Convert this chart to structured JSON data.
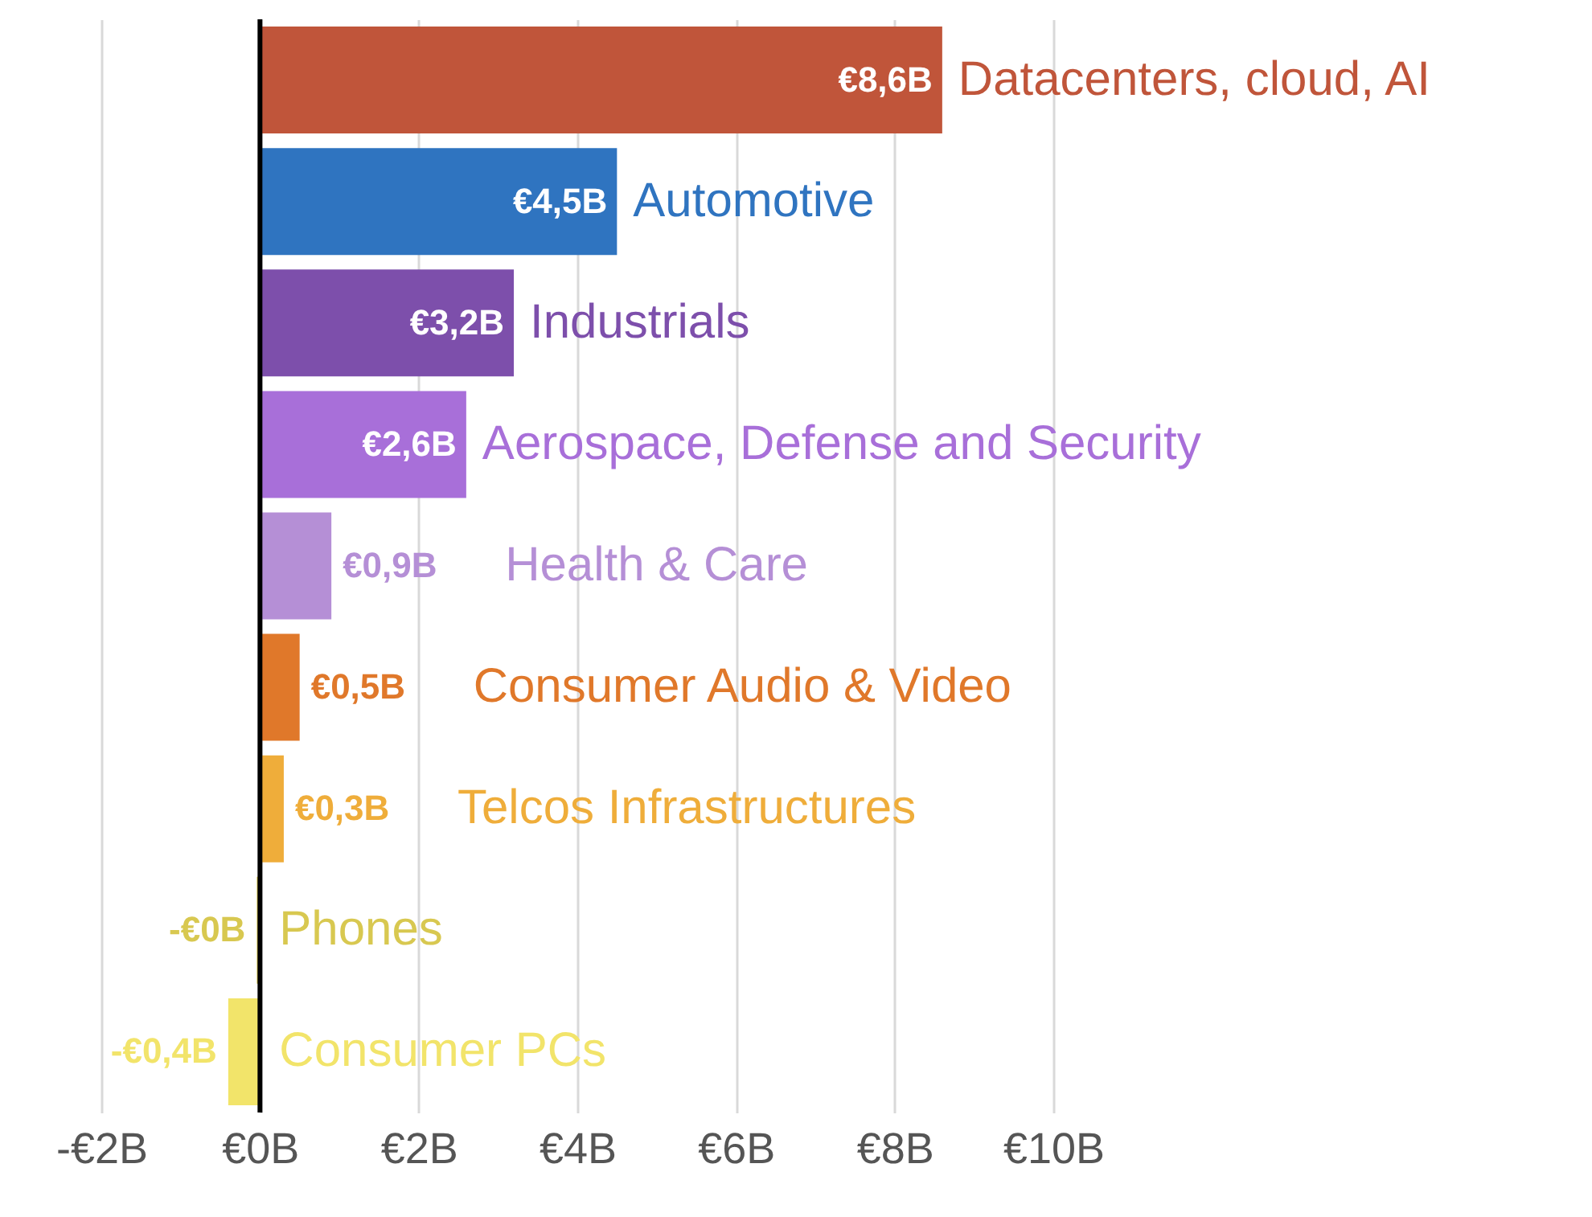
{
  "chart_data": {
    "type": "bar",
    "orientation": "horizontal",
    "categories": [
      "Datacenters, cloud, AI",
      "Automotive",
      "Industrials",
      "Aerospace, Defense and Security",
      "Health & Care",
      "Consumer Audio & Video",
      "Telcos Infrastructures",
      "Phones",
      "Consumer PCs"
    ],
    "values": [
      8.6,
      4.5,
      3.2,
      2.6,
      0.9,
      0.5,
      0.3,
      -0.04,
      -0.4
    ],
    "colors": [
      "#c0553a",
      "#2f74c0",
      "#7d4fab",
      "#a86fd9",
      "#b58fd6",
      "#e0782a",
      "#efad3a",
      "#d8c850",
      "#f2e46a"
    ],
    "value_labels": [
      "€8,6B",
      "€4,5B",
      "€3,2B",
      "€2,6B",
      "€0,9B",
      "€0,5B",
      "€0,3B",
      "-€0B",
      "-€0,4B"
    ],
    "xlim": [
      -2,
      10
    ],
    "xticks": [
      {
        "value": -2,
        "label": "-€2B"
      },
      {
        "value": 0,
        "label": "€0B"
      },
      {
        "value": 2,
        "label": "€2B"
      },
      {
        "value": 4,
        "label": "€4B"
      },
      {
        "value": 6,
        "label": "€6B"
      },
      {
        "value": 8,
        "label": "€8B"
      },
      {
        "value": 10,
        "label": "€10B"
      }
    ],
    "grid": "x",
    "ref_lines": [
      {
        "axis": "x",
        "value": 0,
        "color": "#000000"
      }
    ]
  }
}
